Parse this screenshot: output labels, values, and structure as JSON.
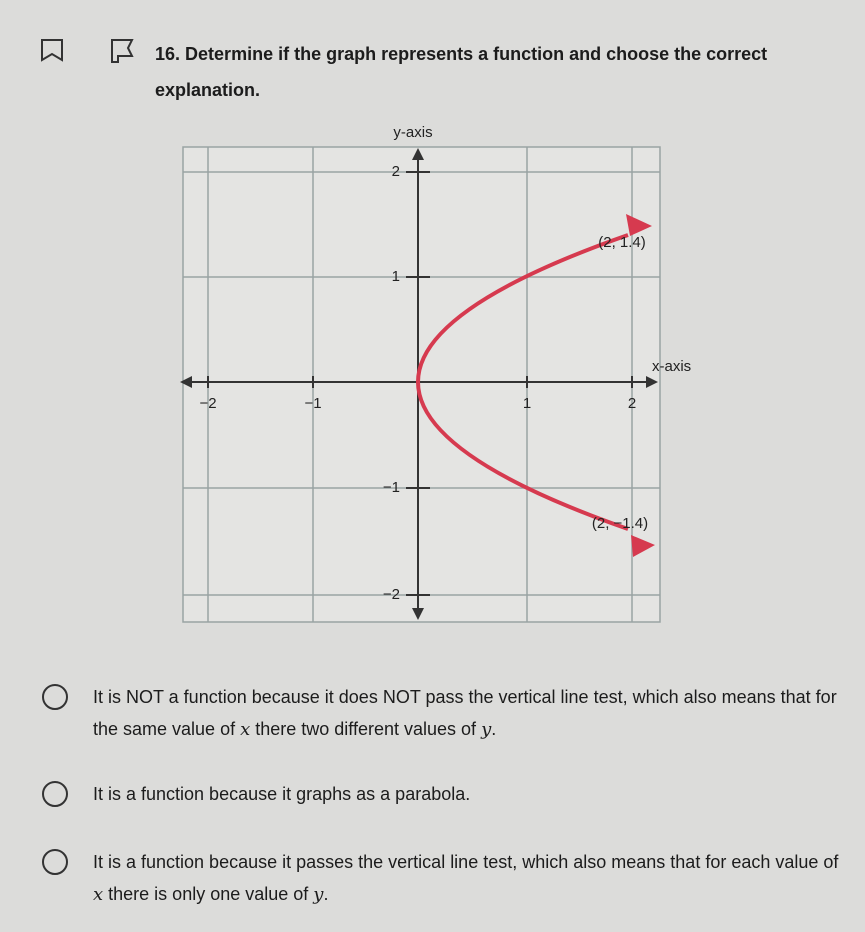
{
  "question": {
    "number": "16.",
    "text": "Determine if the graph represents a function and choose the correct explanation."
  },
  "graph": {
    "y_axis_label": "y-axis",
    "x_axis_label": "x-axis",
    "x_tick_labels": [
      "−2",
      "−1",
      "1",
      "2"
    ],
    "y_tick_labels": [
      "2",
      "1",
      "−1",
      "−2"
    ],
    "point_labels": [
      "(2, 1.4)",
      "(2, −1.4)"
    ]
  },
  "options": [
    {
      "parts": [
        "It is NOT a function because it does NOT pass the vertical line test, which also means that for the same value of ",
        "x",
        " there two different values of ",
        "y",
        "."
      ]
    },
    {
      "parts": [
        "It is a function because it graphs as a parabola."
      ]
    },
    {
      "parts": [
        "It is a function because it passes the vertical line test, which also means that for each value of ",
        "x",
        " there is only one value of ",
        "y",
        "."
      ]
    }
  ]
}
